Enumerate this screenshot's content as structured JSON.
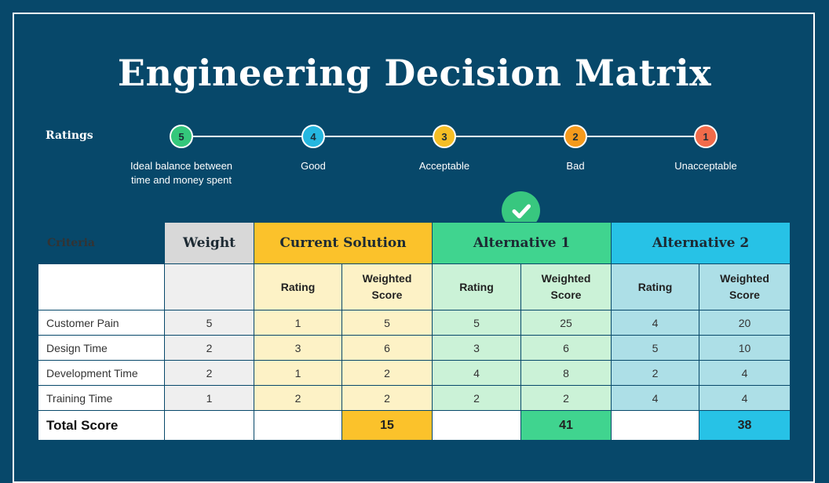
{
  "title": "Engineering Decision Matrix",
  "ratings": {
    "label": "Ratings",
    "scale": [
      {
        "value": "5",
        "desc_line1": "Ideal balance between",
        "desc_line2": "time and money spent",
        "color": "#34c77b"
      },
      {
        "value": "4",
        "desc_line1": "Good",
        "desc_line2": "",
        "color": "#25b7e0"
      },
      {
        "value": "3",
        "desc_line1": "Acceptable",
        "desc_line2": "",
        "color": "#f6be25"
      },
      {
        "value": "2",
        "desc_line1": "Bad",
        "desc_line2": "",
        "color": "#f59a1c"
      },
      {
        "value": "1",
        "desc_line1": "Unacceptable",
        "desc_line2": "",
        "color": "#f26b4a"
      }
    ]
  },
  "selected_badge": {
    "icon": "check-icon",
    "color": "#38c77f"
  },
  "table": {
    "criteria_label": "Criteria",
    "weight_header": "Weight",
    "groups": [
      {
        "name": "Current Solution",
        "header_color": "#fbc22b"
      },
      {
        "name": "Alternative 1",
        "header_color": "#40d48f"
      },
      {
        "name": "Alternative 2",
        "header_color": "#27c2e6"
      }
    ],
    "rating_label": "Rating",
    "weighted_line1": "Weighted",
    "weighted_line2": "Score",
    "rows": [
      {
        "criterion": "Customer Pain",
        "weight": "5",
        "cur_rating": "1",
        "cur_score": "5",
        "alt1_rating": "5",
        "alt1_score": "25",
        "alt2_rating": "4",
        "alt2_score": "20"
      },
      {
        "criterion": "Design Time",
        "weight": "2",
        "cur_rating": "3",
        "cur_score": "6",
        "alt1_rating": "3",
        "alt1_score": "6",
        "alt2_rating": "5",
        "alt2_score": "10"
      },
      {
        "criterion": "Development Time",
        "weight": "2",
        "cur_rating": "1",
        "cur_score": "2",
        "alt1_rating": "4",
        "alt1_score": "8",
        "alt2_rating": "2",
        "alt2_score": "4"
      },
      {
        "criterion": "Training Time",
        "weight": "1",
        "cur_rating": "2",
        "cur_score": "2",
        "alt1_rating": "2",
        "alt1_score": "2",
        "alt2_rating": "4",
        "alt2_score": "4"
      }
    ],
    "total": {
      "label": "Total Score",
      "cur": "15",
      "alt1": "41",
      "alt2": "38"
    }
  }
}
